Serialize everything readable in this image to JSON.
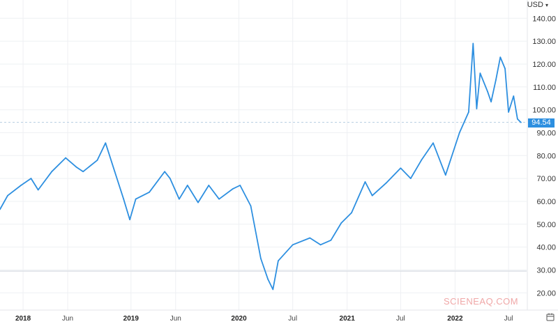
{
  "header": {
    "currency_label": "USD",
    "currency_chevron": "chevron-down-icon"
  },
  "colors": {
    "line": "#2d8fe0",
    "grid": "#eef0f3",
    "badge": "#2d8fe0",
    "reference_line": "#dde1e6",
    "watermark": "#f0a7a7"
  },
  "watermark": "SCIENEAQ.COM",
  "chart_data": {
    "type": "line",
    "title": "",
    "xlabel": "",
    "ylabel": "",
    "xlim": [
      "2017-10-15",
      "2022-08-31"
    ],
    "ylim": [
      14,
      148
    ],
    "grid": true,
    "y_axis_position": "right",
    "yticks": [
      20,
      30,
      40,
      50,
      60,
      70,
      80,
      90,
      100,
      110,
      120,
      130,
      140
    ],
    "ytick_labels": [
      "20.00",
      "30.00",
      "40.00",
      "50.00",
      "60.00",
      "70.00",
      "80.00",
      "90.00",
      "100.00",
      "110.00",
      "120.00",
      "130.00",
      "140.00"
    ],
    "xticks": [
      {
        "date": "2018-01-01",
        "label": "2018",
        "major": true
      },
      {
        "date": "2018-06-01",
        "label": "Jun",
        "major": false
      },
      {
        "date": "2019-01-01",
        "label": "2019",
        "major": true
      },
      {
        "date": "2019-06-01",
        "label": "Jun",
        "major": false
      },
      {
        "date": "2020-01-01",
        "label": "2020",
        "major": true
      },
      {
        "date": "2020-07-01",
        "label": "Jul",
        "major": false
      },
      {
        "date": "2021-01-01",
        "label": "2021",
        "major": true
      },
      {
        "date": "2021-07-01",
        "label": "Jul",
        "major": false
      },
      {
        "date": "2022-01-01",
        "label": "2022",
        "major": true
      },
      {
        "date": "2022-07-01",
        "label": "Jul",
        "major": false
      }
    ],
    "current_price": 94.54,
    "current_price_label": "94.54",
    "reference_line": 29.5,
    "series": [
      {
        "x": [
          "2017-10-15",
          "2017-11-10",
          "2017-12-25",
          "2018-01-28",
          "2018-02-21",
          "2018-04-08",
          "2018-05-25",
          "2018-06-30",
          "2018-07-23",
          "2018-09-09",
          "2018-10-07",
          "2018-11-07",
          "2018-12-07",
          "2018-12-28",
          "2019-01-17",
          "2019-03-04",
          "2019-04-25",
          "2019-05-13",
          "2019-06-13",
          "2019-07-11",
          "2019-08-16",
          "2019-09-21",
          "2019-10-26",
          "2019-12-12",
          "2020-01-05",
          "2020-02-10",
          "2020-03-15",
          "2020-04-08",
          "2020-04-25",
          "2020-05-13",
          "2020-07-01",
          "2020-08-28",
          "2020-10-03",
          "2020-11-07",
          "2020-12-12",
          "2021-01-16",
          "2021-03-03",
          "2021-03-27",
          "2021-05-13",
          "2021-07-01",
          "2021-08-04",
          "2021-09-09",
          "2021-10-19",
          "2021-11-30",
          "2022-01-16",
          "2022-02-16",
          "2022-03-03",
          "2022-03-15",
          "2022-03-27",
          "2022-04-21",
          "2022-05-03",
          "2022-05-19",
          "2022-06-03",
          "2022-06-19",
          "2022-07-01",
          "2022-07-18",
          "2022-07-31",
          "2022-08-12"
        ],
        "y": [
          56.5,
          62.5,
          67,
          70,
          65,
          73,
          79,
          75,
          73,
          78,
          85.5,
          73,
          61,
          52,
          61,
          64,
          73,
          70,
          61,
          67,
          59.5,
          67,
          61,
          65.5,
          67,
          58,
          35,
          26,
          21.5,
          34,
          41,
          44,
          41,
          43,
          50.5,
          55,
          68.5,
          62.5,
          68,
          74.5,
          70,
          78,
          85.5,
          71.5,
          90,
          99,
          129,
          100.5,
          116,
          108,
          103.5,
          113,
          123,
          118,
          99,
          106,
          96,
          94.5
        ]
      }
    ]
  }
}
